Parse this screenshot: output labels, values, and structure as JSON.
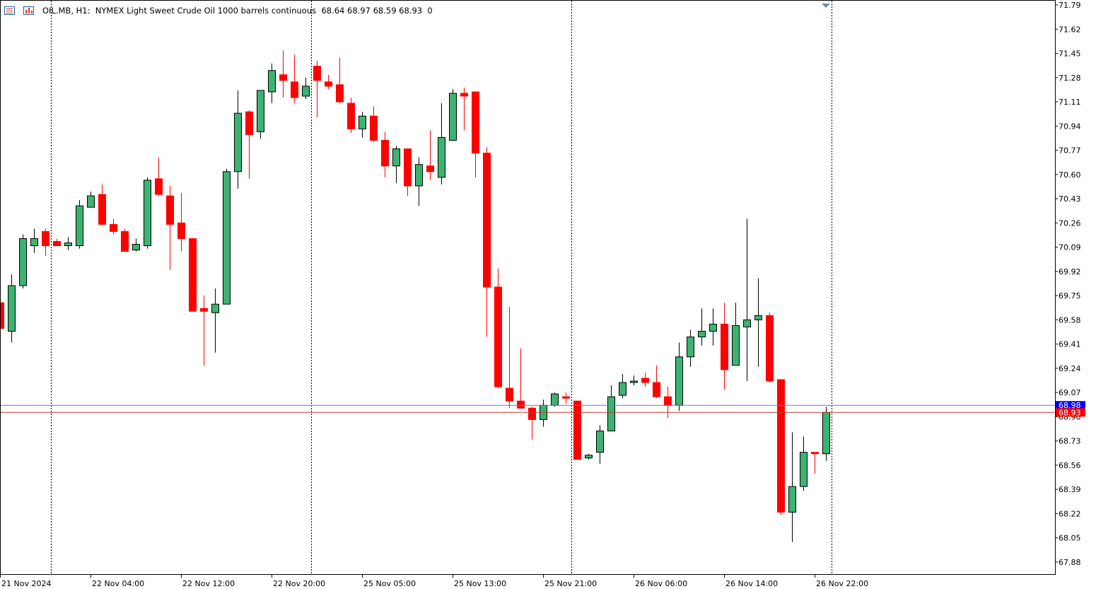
{
  "header": {
    "symbol": "OIL.MB, H1:",
    "description": "NYMEX Light Sweet Crude Oil 1000 barrels continuous",
    "ohlc": "68.64 68.97 68.59 68.93",
    "zero": "0",
    "list_icon": "list-icon",
    "chart_icon": "chart-window-icon"
  },
  "colors": {
    "bull": "#3cb371",
    "bear": "#ff0000",
    "ask_line": "#6b7bb8",
    "bid_line": "#c0392b",
    "ask_tag": "#0000ff",
    "bid_tag": "#ff0000"
  },
  "chart_data": {
    "type": "candlestick",
    "symbol": "OIL.MB",
    "timeframe": "H1",
    "ylim": [
      67.71,
      71.79
    ],
    "price_ticks": [
      "71.79",
      "71.62",
      "71.45",
      "71.28",
      "71.11",
      "70.94",
      "70.77",
      "70.60",
      "70.43",
      "70.26",
      "70.09",
      "69.92",
      "69.75",
      "69.58",
      "69.41",
      "69.24",
      "69.07",
      "68.90",
      "68.73",
      "68.56",
      "68.39",
      "68.22",
      "68.05",
      "67.88"
    ],
    "time_labels": [
      "21 Nov 2024",
      "22 Nov 04:00",
      "22 Nov 12:00",
      "22 Nov 20:00",
      "25 Nov 05:00",
      "25 Nov 13:00",
      "25 Nov 21:00",
      "26 Nov 06:00",
      "26 Nov 14:00",
      "26 Nov 22:00"
    ],
    "time_label_index": [
      0,
      8,
      16,
      24,
      32,
      40,
      48,
      56,
      64,
      72
    ],
    "day_separators_index": [
      4.5,
      27.5,
      50.5,
      73.5
    ],
    "ask_price": "68.98",
    "bid_price": "68.93",
    "candles": [
      {
        "o": 69.7,
        "h": 69.7,
        "l": 69.52,
        "c": 69.52
      },
      {
        "o": 69.5,
        "h": 69.9,
        "l": 69.42,
        "c": 69.82
      },
      {
        "o": 69.82,
        "h": 70.18,
        "l": 69.8,
        "c": 70.15
      },
      {
        "o": 70.1,
        "h": 70.22,
        "l": 70.05,
        "c": 70.15
      },
      {
        "o": 70.2,
        "h": 70.22,
        "l": 70.03,
        "c": 70.1
      },
      {
        "o": 70.13,
        "h": 70.15,
        "l": 70.1,
        "c": 70.1
      },
      {
        "o": 70.1,
        "h": 70.16,
        "l": 70.07,
        "c": 70.12
      },
      {
        "o": 70.1,
        "h": 70.42,
        "l": 70.08,
        "c": 70.38
      },
      {
        "o": 70.37,
        "h": 70.48,
        "l": 70.37,
        "c": 70.45
      },
      {
        "o": 70.46,
        "h": 70.53,
        "l": 70.25,
        "c": 70.25
      },
      {
        "o": 70.25,
        "h": 70.29,
        "l": 70.18,
        "c": 70.2
      },
      {
        "o": 70.2,
        "h": 70.22,
        "l": 70.06,
        "c": 70.06
      },
      {
        "o": 70.07,
        "h": 70.15,
        "l": 70.06,
        "c": 70.11
      },
      {
        "o": 70.1,
        "h": 70.58,
        "l": 70.08,
        "c": 70.56
      },
      {
        "o": 70.57,
        "h": 70.72,
        "l": 70.45,
        "c": 70.46
      },
      {
        "o": 70.45,
        "h": 70.52,
        "l": 69.93,
        "c": 70.25
      },
      {
        "o": 70.26,
        "h": 70.47,
        "l": 70.06,
        "c": 70.15
      },
      {
        "o": 70.15,
        "h": 70.15,
        "l": 69.64,
        "c": 69.64
      },
      {
        "o": 69.66,
        "h": 69.75,
        "l": 69.26,
        "c": 69.64
      },
      {
        "o": 69.63,
        "h": 69.8,
        "l": 69.35,
        "c": 69.69
      },
      {
        "o": 69.69,
        "h": 70.64,
        "l": 69.69,
        "c": 70.62
      },
      {
        "o": 70.62,
        "h": 71.19,
        "l": 70.5,
        "c": 71.03
      },
      {
        "o": 71.04,
        "h": 71.05,
        "l": 70.57,
        "c": 70.88
      },
      {
        "o": 70.9,
        "h": 71.18,
        "l": 70.85,
        "c": 71.19
      },
      {
        "o": 71.18,
        "h": 71.38,
        "l": 71.1,
        "c": 71.33
      },
      {
        "o": 71.3,
        "h": 71.47,
        "l": 71.14,
        "c": 71.26
      },
      {
        "o": 71.25,
        "h": 71.44,
        "l": 71.1,
        "c": 71.14
      },
      {
        "o": 71.15,
        "h": 71.28,
        "l": 71.13,
        "c": 71.22
      },
      {
        "o": 71.36,
        "h": 71.4,
        "l": 71.0,
        "c": 71.26
      },
      {
        "o": 71.25,
        "h": 71.3,
        "l": 71.2,
        "c": 71.22
      },
      {
        "o": 71.23,
        "h": 71.42,
        "l": 71.1,
        "c": 71.11
      },
      {
        "o": 71.1,
        "h": 71.14,
        "l": 70.89,
        "c": 70.92
      },
      {
        "o": 70.92,
        "h": 71.04,
        "l": 70.86,
        "c": 71.01
      },
      {
        "o": 71.01,
        "h": 71.08,
        "l": 70.83,
        "c": 70.84
      },
      {
        "o": 70.84,
        "h": 70.9,
        "l": 70.58,
        "c": 70.66
      },
      {
        "o": 70.66,
        "h": 70.8,
        "l": 70.54,
        "c": 70.78
      },
      {
        "o": 70.78,
        "h": 70.78,
        "l": 70.45,
        "c": 70.52
      },
      {
        "o": 70.52,
        "h": 70.72,
        "l": 70.38,
        "c": 70.67
      },
      {
        "o": 70.66,
        "h": 70.91,
        "l": 70.56,
        "c": 70.62
      },
      {
        "o": 70.58,
        "h": 71.1,
        "l": 70.53,
        "c": 70.86
      },
      {
        "o": 70.84,
        "h": 71.2,
        "l": 70.84,
        "c": 71.17
      },
      {
        "o": 71.17,
        "h": 71.21,
        "l": 70.91,
        "c": 71.15
      },
      {
        "o": 71.18,
        "h": 71.18,
        "l": 70.58,
        "c": 70.75
      },
      {
        "o": 70.75,
        "h": 70.79,
        "l": 69.46,
        "c": 69.81
      },
      {
        "o": 69.81,
        "h": 69.94,
        "l": 69.1,
        "c": 69.11
      },
      {
        "o": 69.1,
        "h": 69.67,
        "l": 68.96,
        "c": 69.01
      },
      {
        "o": 69.01,
        "h": 69.38,
        "l": 68.96,
        "c": 68.96
      },
      {
        "o": 68.96,
        "h": 68.97,
        "l": 68.74,
        "c": 68.88
      },
      {
        "o": 68.88,
        "h": 69.02,
        "l": 68.83,
        "c": 68.98
      },
      {
        "o": 68.98,
        "h": 69.07,
        "l": 68.97,
        "c": 69.06
      },
      {
        "o": 69.04,
        "h": 69.07,
        "l": 68.99,
        "c": 69.03
      },
      {
        "o": 69.01,
        "h": 69.01,
        "l": 68.6,
        "c": 68.6
      },
      {
        "o": 68.61,
        "h": 68.64,
        "l": 68.6,
        "c": 68.63
      },
      {
        "o": 68.65,
        "h": 68.84,
        "l": 68.57,
        "c": 68.8
      },
      {
        "o": 68.8,
        "h": 69.12,
        "l": 68.8,
        "c": 69.04
      },
      {
        "o": 69.05,
        "h": 69.2,
        "l": 69.03,
        "c": 69.14
      },
      {
        "o": 69.14,
        "h": 69.19,
        "l": 69.12,
        "c": 69.15
      },
      {
        "o": 69.17,
        "h": 69.21,
        "l": 69.11,
        "c": 69.14
      },
      {
        "o": 69.14,
        "h": 69.26,
        "l": 69.03,
        "c": 69.04
      },
      {
        "o": 69.04,
        "h": 69.11,
        "l": 68.89,
        "c": 68.98
      },
      {
        "o": 68.98,
        "h": 69.42,
        "l": 68.94,
        "c": 69.32
      },
      {
        "o": 69.32,
        "h": 69.51,
        "l": 69.25,
        "c": 69.46
      },
      {
        "o": 69.46,
        "h": 69.66,
        "l": 69.4,
        "c": 69.5
      },
      {
        "o": 69.5,
        "h": 69.66,
        "l": 69.4,
        "c": 69.55
      },
      {
        "o": 69.55,
        "h": 69.7,
        "l": 69.09,
        "c": 69.23
      },
      {
        "o": 69.26,
        "h": 69.7,
        "l": 69.26,
        "c": 69.54
      },
      {
        "o": 69.53,
        "h": 70.29,
        "l": 69.15,
        "c": 69.58
      },
      {
        "o": 69.58,
        "h": 69.87,
        "l": 69.25,
        "c": 69.61
      },
      {
        "o": 69.61,
        "h": 69.63,
        "l": 69.14,
        "c": 69.15
      },
      {
        "o": 69.16,
        "h": 69.16,
        "l": 68.21,
        "c": 68.23
      },
      {
        "o": 68.23,
        "h": 68.79,
        "l": 68.02,
        "c": 68.41
      },
      {
        "o": 68.41,
        "h": 68.76,
        "l": 68.38,
        "c": 68.65
      },
      {
        "o": 68.65,
        "h": 68.65,
        "l": 68.5,
        "c": 68.64
      },
      {
        "o": 68.64,
        "h": 68.97,
        "l": 68.59,
        "c": 68.93
      }
    ]
  }
}
